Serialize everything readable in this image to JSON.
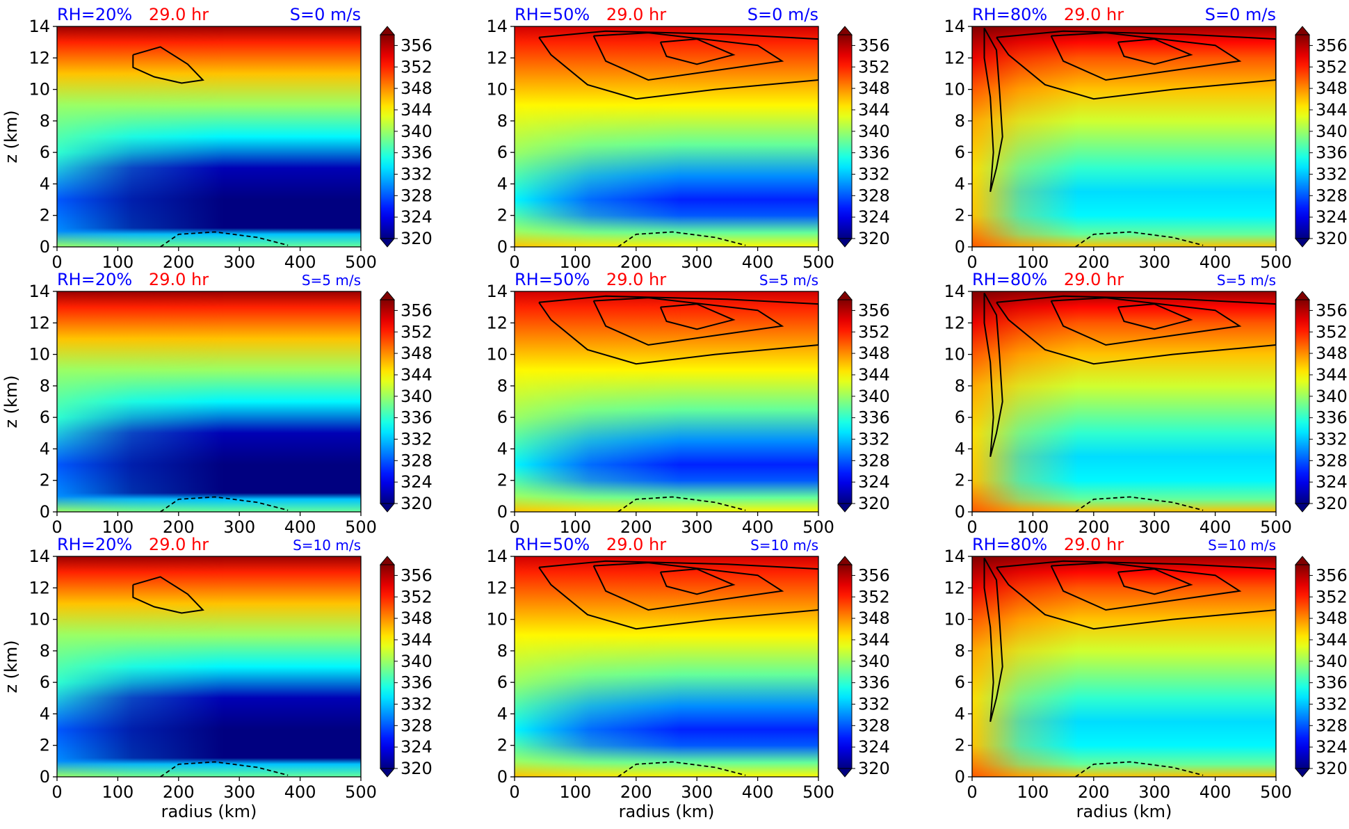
{
  "panels_meta": {
    "time_label": "29.0 hr",
    "rh_labels": [
      "RH=20%",
      "RH=50%",
      "RH=80%"
    ],
    "shear_labels": [
      "S=0 m/s",
      "S=5 m/s",
      "S=10 m/s"
    ],
    "colors": {
      "header_blue": "#0000ff",
      "header_red": "#ff0000",
      "contour": "#000000"
    }
  },
  "chart_data": {
    "type": "heatmap",
    "description_of_layout": "3x3 grid of filled-contour panels; rows = vertical shear S, columns = relative humidity RH; each panel has its own colorbar",
    "xlabel": "radius (km)",
    "ylabel": "z (km)",
    "xlim": [
      0,
      500
    ],
    "ylim": [
      0,
      14
    ],
    "x_ticks": [
      0,
      100,
      200,
      300,
      400,
      500
    ],
    "y_ticks": [
      0,
      2,
      4,
      6,
      8,
      10,
      12,
      14
    ],
    "colorbar": {
      "ticks": [
        320,
        324,
        328,
        332,
        336,
        340,
        344,
        348,
        352,
        356
      ],
      "range": [
        320,
        358
      ],
      "colormap": "jet",
      "extend": "both"
    },
    "panels": [
      {
        "row": 0,
        "col": 0,
        "rh": "RH=20%",
        "time": "29.0 hr",
        "shear": "S=0 m/s"
      },
      {
        "row": 0,
        "col": 1,
        "rh": "RH=50%",
        "time": "29.0 hr",
        "shear": "S=0 m/s"
      },
      {
        "row": 0,
        "col": 2,
        "rh": "RH=80%",
        "time": "29.0 hr",
        "shear": "S=0 m/s"
      },
      {
        "row": 1,
        "col": 0,
        "rh": "RH=20%",
        "time": "29.0 hr",
        "shear": "S=5 m/s"
      },
      {
        "row": 1,
        "col": 1,
        "rh": "RH=50%",
        "time": "29.0 hr",
        "shear": "S=5 m/s"
      },
      {
        "row": 1,
        "col": 2,
        "rh": "RH=80%",
        "time": "29.0 hr",
        "shear": "S=5 m/s"
      },
      {
        "row": 2,
        "col": 0,
        "rh": "RH=20%",
        "time": "29.0 hr",
        "shear": "S=10 m/s"
      },
      {
        "row": 2,
        "col": 1,
        "rh": "RH=50%",
        "time": "29.0 hr",
        "shear": "S=10 m/s"
      },
      {
        "row": 2,
        "col": 2,
        "rh": "RH=80%",
        "time": "29.0 hr",
        "shear": "S=10 m/s"
      }
    ]
  }
}
